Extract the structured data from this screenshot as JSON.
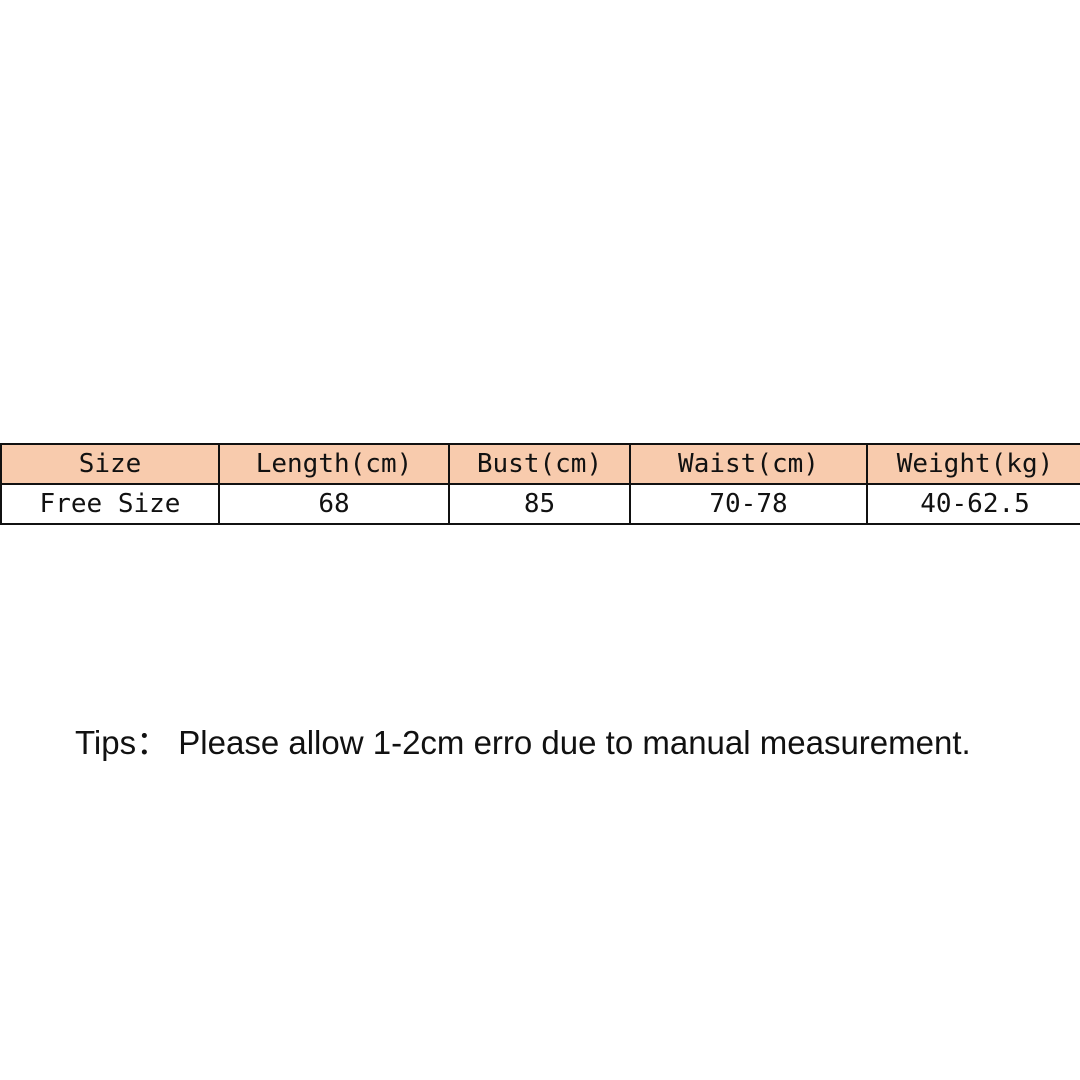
{
  "size_table": {
    "header_color": "#F8CBAD",
    "headers": [
      "Size",
      "Length(cm)",
      "Bust(cm)",
      "Waist(cm)",
      "Weight(kg)"
    ],
    "rows": [
      [
        "Free Size",
        "68",
        "85",
        "70-78",
        "40-62.5"
      ]
    ]
  },
  "tips": "Tips： Please allow 1-2cm erro due to manual measurement."
}
